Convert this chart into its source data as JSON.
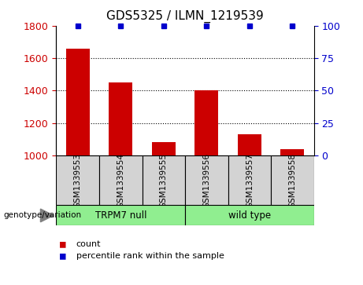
{
  "title": "GDS5325 / ILMN_1219539",
  "categories": [
    "GSM1339553",
    "GSM1339554",
    "GSM1339555",
    "GSM1339556",
    "GSM1339557",
    "GSM1339558"
  ],
  "bar_values": [
    1660,
    1450,
    1080,
    1400,
    1130,
    1040
  ],
  "percentile_values": [
    100,
    100,
    100,
    100,
    100,
    100
  ],
  "bar_color": "#cc0000",
  "percentile_color": "#0000cc",
  "ylim_left": [
    1000,
    1800
  ],
  "ylim_right": [
    0,
    100
  ],
  "yticks_left": [
    1000,
    1200,
    1400,
    1600,
    1800
  ],
  "yticks_right": [
    0,
    25,
    50,
    75,
    100
  ],
  "grid_lines": [
    1200,
    1400,
    1600
  ],
  "group_label_prefix": "genotype/variation",
  "group1_label": "TRPM7 null",
  "group2_label": "wild type",
  "group_color": "#90ee90",
  "legend_count_label": "count",
  "legend_percentile_label": "percentile rank within the sample",
  "bar_width": 0.55,
  "tick_bg_color": "#d3d3d3",
  "left_tick_color": "#cc0000",
  "right_tick_color": "#0000cc"
}
